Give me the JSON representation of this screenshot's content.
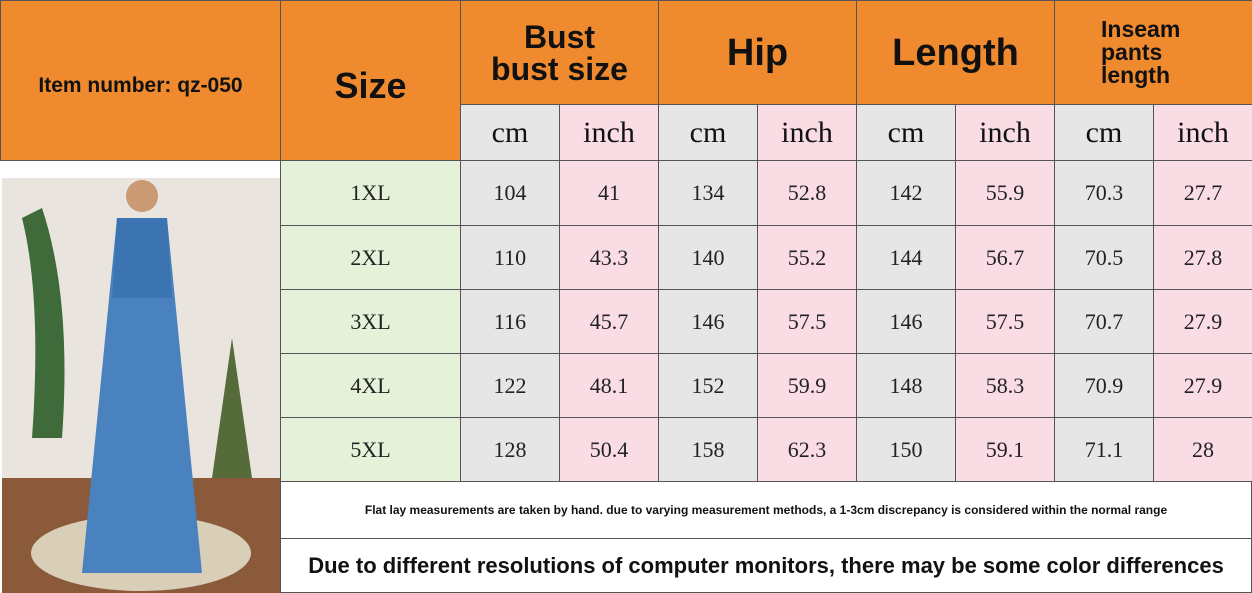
{
  "header": {
    "item_number": "Item number: qz-050",
    "size": "Size"
  },
  "columns": [
    {
      "title": [
        "Bust",
        "bust size"
      ],
      "units": [
        "cm",
        "inch"
      ]
    },
    {
      "title": [
        "Hip"
      ],
      "units": [
        "cm",
        "inch"
      ]
    },
    {
      "title": [
        "Length"
      ],
      "units": [
        "cm",
        "inch"
      ]
    },
    {
      "title": [
        "Inseam",
        "pants",
        "length"
      ],
      "units": [
        "cm",
        "inch"
      ]
    }
  ],
  "rows": [
    {
      "size": "1XL",
      "values": [
        104,
        41,
        134,
        52.8,
        142,
        55.9,
        70.3,
        27.7
      ]
    },
    {
      "size": "2XL",
      "values": [
        110,
        43.3,
        140,
        55.2,
        144,
        56.7,
        70.5,
        27.8
      ]
    },
    {
      "size": "3XL",
      "values": [
        116,
        45.7,
        146,
        57.5,
        146,
        57.5,
        70.7,
        27.9
      ]
    },
    {
      "size": "4XL",
      "values": [
        122,
        48.1,
        152,
        59.9,
        148,
        58.3,
        70.9,
        27.9
      ]
    },
    {
      "size": "5XL",
      "values": [
        128,
        50.4,
        158,
        62.3,
        150,
        59.1,
        71.1,
        28
      ]
    }
  ],
  "notes": [
    "Flat lay measurements are taken by hand. due to varying measurement methods, a 1-3cm discrepancy is considered within the normal range",
    "Due to different resolutions of computer monitors, there may be some color differences"
  ]
}
